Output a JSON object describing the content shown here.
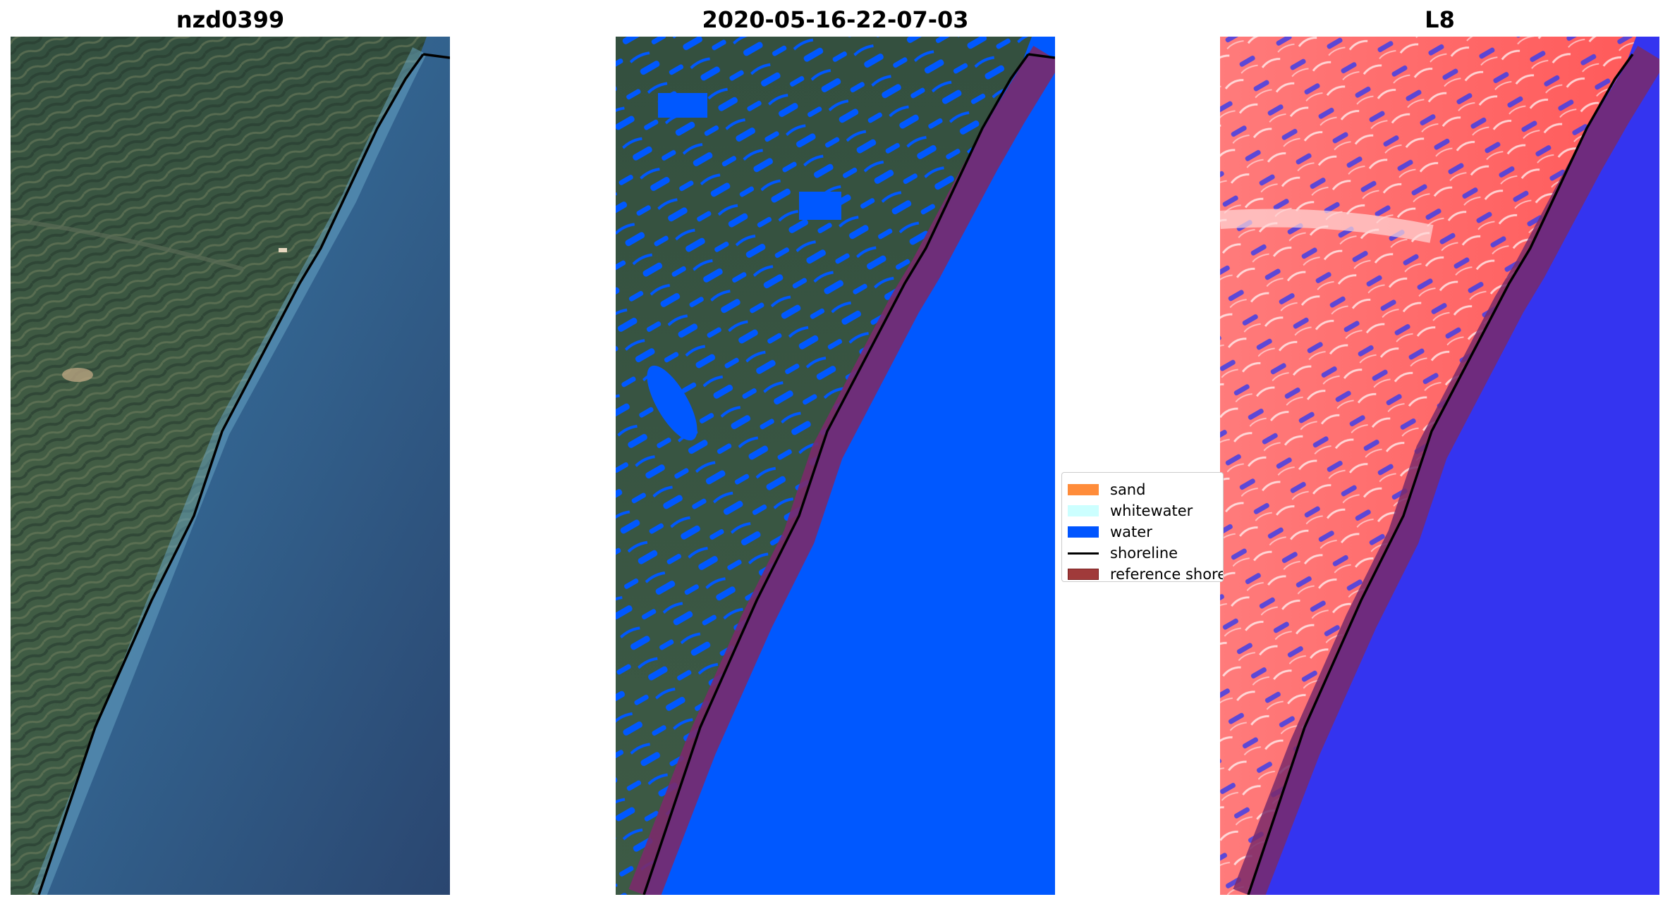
{
  "panels": [
    {
      "title": "nzd0399"
    },
    {
      "title": "2020-05-16-22-07-03"
    },
    {
      "title": "L8"
    }
  ],
  "legend": {
    "items": [
      {
        "label": "sand",
        "color": "#ff8c3a",
        "kind": "patch"
      },
      {
        "label": "whitewater",
        "color": "#ccffff",
        "kind": "patch"
      },
      {
        "label": "water",
        "color": "#0055ff",
        "kind": "patch"
      },
      {
        "label": "shoreline",
        "color": "#000000",
        "kind": "line"
      },
      {
        "label": "reference shoreline",
        "color": "#a03a3a",
        "kind": "patch"
      }
    ]
  },
  "colors": {
    "land_rgb": "#3d5a4a",
    "ocean_rgb": "#2d4a72",
    "coast_rgb": "#4d7fa6",
    "water_class": "#0058ff",
    "buffer": "#7a2a6a",
    "mndwi_land": "#ff6a6a",
    "mndwi_water": "#3b3bef"
  }
}
